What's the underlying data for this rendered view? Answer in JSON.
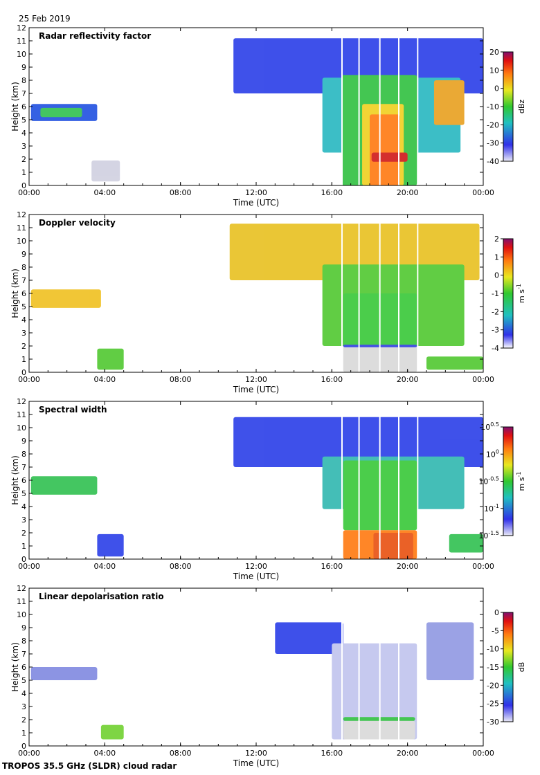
{
  "header": {
    "date": "25 Feb 2019"
  },
  "footer": {
    "instrument": "TROPOS 35.5 GHz (SLDR) cloud radar"
  },
  "chart_data": [
    {
      "type": "heatmap",
      "title": "Radar reflectivity factor",
      "xlabel": "Time (UTC)",
      "ylabel": "Height (km)",
      "x_ticks": [
        "00:00",
        "04:00",
        "08:00",
        "12:00",
        "16:00",
        "20:00",
        "00:00"
      ],
      "y_ticks": [
        "0",
        "1",
        "2",
        "3",
        "4",
        "5",
        "6",
        "7",
        "8",
        "9",
        "10",
        "11",
        "12"
      ],
      "ylim": [
        0,
        12
      ],
      "xlim_hours": [
        0,
        24
      ],
      "colorbar": {
        "unit": "dBz",
        "range": [
          -40,
          20
        ],
        "ticks": [
          "20",
          "10",
          "0",
          "-10",
          "-20",
          "-30",
          "-40"
        ]
      },
      "scheme": "reflectivity"
    },
    {
      "type": "heatmap",
      "title": "Doppler velocity",
      "xlabel": "Time (UTC)",
      "ylabel": "Height (km)",
      "x_ticks": [
        "00:00",
        "04:00",
        "08:00",
        "12:00",
        "16:00",
        "20:00",
        "00:00"
      ],
      "y_ticks": [
        "0",
        "1",
        "2",
        "3",
        "4",
        "5",
        "6",
        "7",
        "8",
        "9",
        "10",
        "11",
        "12"
      ],
      "ylim": [
        0,
        12
      ],
      "xlim_hours": [
        0,
        24
      ],
      "colorbar": {
        "unit": "m s-1",
        "range": [
          -4,
          2
        ],
        "ticks": [
          "2",
          "1",
          "0",
          "-1",
          "-2",
          "-3",
          "-4"
        ]
      },
      "scheme": "velocity"
    },
    {
      "type": "heatmap",
      "title": "Spectral width",
      "xlabel": "Time (UTC)",
      "ylabel": "Height (km)",
      "x_ticks": [
        "00:00",
        "04:00",
        "08:00",
        "12:00",
        "16:00",
        "20:00",
        "00:00"
      ],
      "y_ticks": [
        "0",
        "1",
        "2",
        "3",
        "4",
        "5",
        "6",
        "7",
        "8",
        "9",
        "10",
        "11",
        "12"
      ],
      "ylim": [
        0,
        12
      ],
      "xlim_hours": [
        0,
        24
      ],
      "colorbar": {
        "unit": "m s-1",
        "range": [
          -1.5,
          0.5
        ],
        "ticks": [
          "10^0.5",
          "10^0",
          "10^-0.5",
          "10^-1",
          "10^-1.5"
        ]
      },
      "scheme": "width"
    },
    {
      "type": "heatmap",
      "title": "Linear depolarisation ratio",
      "xlabel": "Time (UTC)",
      "ylabel": "Height (km)",
      "x_ticks": [
        "00:00",
        "04:00",
        "08:00",
        "12:00",
        "16:00",
        "20:00",
        "00:00"
      ],
      "y_ticks": [
        "0",
        "1",
        "2",
        "3",
        "4",
        "5",
        "6",
        "7",
        "8",
        "9",
        "10",
        "11",
        "12"
      ],
      "ylim": [
        0,
        12
      ],
      "xlim_hours": [
        0,
        24
      ],
      "colorbar": {
        "unit": "dB",
        "range": [
          -30,
          0
        ],
        "ticks": [
          "0",
          "-5",
          "-10",
          "-15",
          "-20",
          "-25",
          "-30"
        ]
      },
      "scheme": "ldr"
    }
  ],
  "colors": {
    "axis": "#000000",
    "background": "#ffffff",
    "missing": "#d9d9d9"
  }
}
